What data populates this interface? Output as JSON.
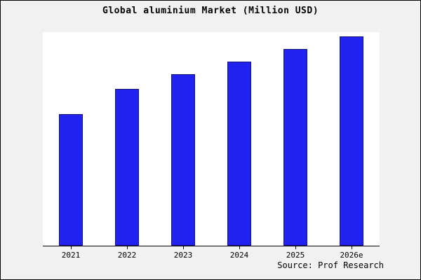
{
  "figure": {
    "title": "Global aluminium Market (Million USD)",
    "source": "Source: Prof Research"
  },
  "chart_data": {
    "type": "bar",
    "title": "Global aluminium Market (Million USD)",
    "categories": [
      "2021",
      "2022",
      "2023",
      "2024",
      "2025",
      "2026e"
    ],
    "values": [
      63,
      75,
      82,
      88,
      94,
      100
    ],
    "xlabel": "",
    "ylabel": "",
    "ylim": [
      0,
      102
    ],
    "grid": false,
    "legend": false,
    "bar_color": "#2222f0",
    "bar_edge_color": "#15157a",
    "plot_background": "#ffffff",
    "figure_background": "#f1f1f1",
    "source": "Source: Prof Research"
  }
}
